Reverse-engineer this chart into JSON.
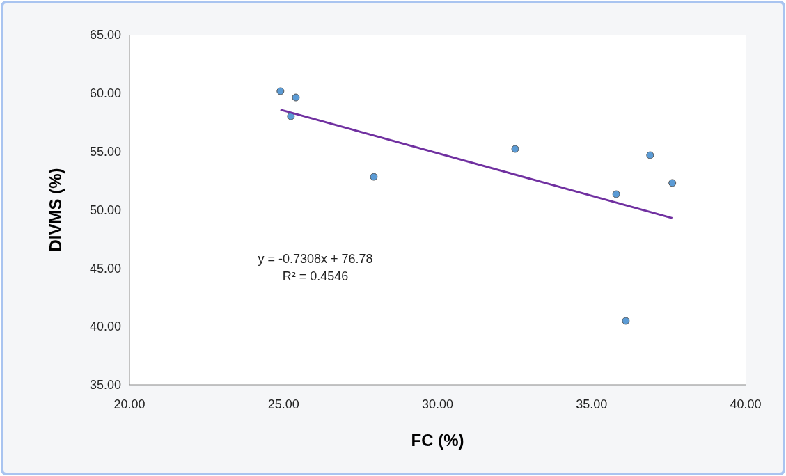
{
  "chart_data": {
    "type": "scatter",
    "xlabel": "FC (%)",
    "ylabel": "DIVMS (%)",
    "xlim": [
      20,
      40
    ],
    "xticks": [
      {
        "value": 20,
        "label": "20.00"
      },
      {
        "value": 25,
        "label": "25.00"
      },
      {
        "value": 30,
        "label": "30.00"
      },
      {
        "value": 35,
        "label": "35.00"
      },
      {
        "value": 40,
        "label": "40.00"
      }
    ],
    "ylim": [
      35,
      65
    ],
    "yticks": [
      {
        "value": 35,
        "label": "35.00"
      },
      {
        "value": 40,
        "label": "40.00"
      },
      {
        "value": 45,
        "label": "45.00"
      },
      {
        "value": 50,
        "label": "50.00"
      },
      {
        "value": 55,
        "label": "55.00"
      },
      {
        "value": 60,
        "label": "60.00"
      },
      {
        "value": 65,
        "label": "65.00"
      }
    ],
    "series": [
      {
        "marker": "circle",
        "color": "#5b9bd5",
        "x": [
          24.9,
          25.4,
          25.24,
          27.93,
          32.52,
          35.8,
          36.11,
          36.9,
          37.62
        ],
        "values": [
          60.17,
          59.63,
          58.02,
          52.83,
          55.22,
          51.34,
          40.49,
          54.68,
          52.3
        ]
      },
      {
        "type": "line",
        "marker": "none",
        "color": "#7030a0",
        "line_style": "solid",
        "x": [
          24.9,
          37.62
        ],
        "values": [
          58.58,
          49.29
        ]
      }
    ],
    "annotations": [
      "y = -0.7308x + 76.78",
      "R² = 0.4546"
    ]
  }
}
